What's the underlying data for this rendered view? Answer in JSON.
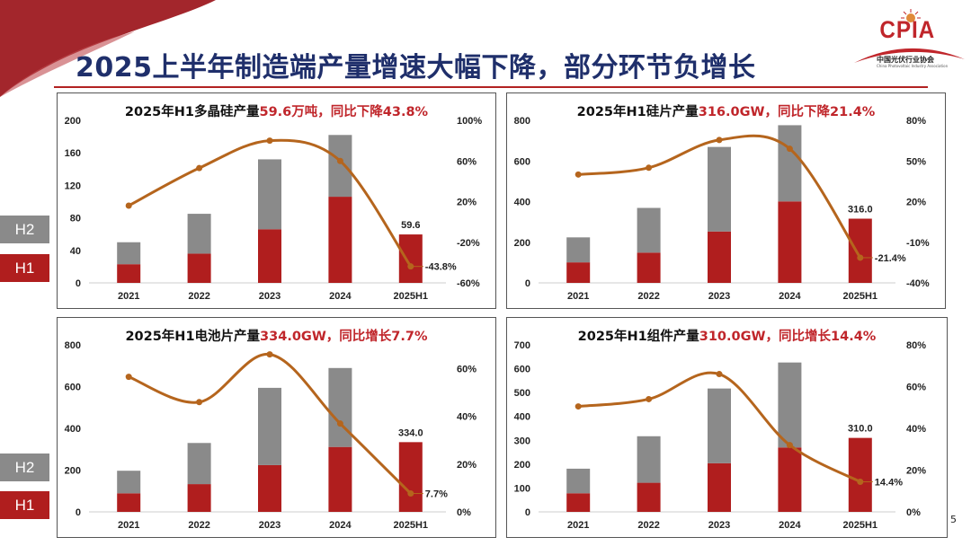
{
  "slide": {
    "title": "2025上半年制造端产量增速大幅下降，部分环节负增长",
    "page_number": "5",
    "logo": {
      "name": "CPIA",
      "cn": "中国光伏行业协会",
      "en": "China Photovoltaic Industry Association"
    },
    "legend": {
      "h2": "H2",
      "h1": "H1"
    },
    "colors": {
      "title": "#1f2f6b",
      "accent": "#c0262b",
      "h1": "#b01e1e",
      "h2": "#8a8a8a",
      "line": "#b5651d"
    }
  },
  "chart_data": [
    {
      "type": "bar",
      "stacked": true,
      "title_prefix": "2025年H1多晶硅产量",
      "title_highlight": "59.6万吨，同比下降43.8%",
      "categories": [
        "2021",
        "2022",
        "2023",
        "2024",
        "2025H1"
      ],
      "series": [
        {
          "name": "H1",
          "values": [
            23,
            36,
            66,
            106,
            59.6
          ]
        },
        {
          "name": "H2",
          "values": [
            27,
            49,
            86,
            76,
            null
          ]
        }
      ],
      "line": {
        "type": "line",
        "axis": "right",
        "unit": "%",
        "values": [
          16,
          53,
          80,
          60,
          -43.8
        ]
      },
      "bar_label": "59.6",
      "line_label": "-43.8%",
      "ylim": [
        0,
        200
      ],
      "yticks": [
        "0",
        "40",
        "80",
        "120",
        "160",
        "200"
      ],
      "y2lim": [
        -60,
        100
      ],
      "y2ticks": [
        "-60%",
        "-20%",
        "20%",
        "60%",
        "100%"
      ]
    },
    {
      "type": "bar",
      "stacked": true,
      "title_prefix": "2025年H1硅片产量",
      "title_highlight": "316.0GW，同比下降21.4%",
      "categories": [
        "2021",
        "2022",
        "2023",
        "2024",
        "2025H1"
      ],
      "series": [
        {
          "name": "H1",
          "values": [
            101,
            149,
            253,
            401,
            316.0
          ]
        },
        {
          "name": "H2",
          "values": [
            123,
            220,
            416,
            375,
            null
          ]
        }
      ],
      "line": {
        "type": "line",
        "axis": "right",
        "unit": "%",
        "values": [
          40,
          45,
          65.5,
          59,
          -21.4
        ]
      },
      "bar_label": "316.0",
      "line_label": "-21.4%",
      "ylim": [
        0,
        800
      ],
      "yticks": [
        "0",
        "200",
        "400",
        "600",
        "800"
      ],
      "y2lim": [
        -40,
        80
      ],
      "y2ticks": [
        "-40%",
        "-10%",
        "20%",
        "50%",
        "80%"
      ]
    },
    {
      "type": "bar",
      "stacked": true,
      "title_prefix": "2025年H1电池片产量",
      "title_highlight": "334.0GW，同比增长7.7%",
      "categories": [
        "2021",
        "2022",
        "2023",
        "2024",
        "2025H1"
      ],
      "series": [
        {
          "name": "H1",
          "values": [
            89,
            133,
            224,
            311,
            334.0
          ]
        },
        {
          "name": "H2",
          "values": [
            108,
            197,
            370,
            378,
            null
          ]
        }
      ],
      "line": {
        "type": "line",
        "axis": "right",
        "unit": "%",
        "values": [
          56.6,
          46,
          66,
          37,
          7.7
        ]
      },
      "bar_label": "334.0",
      "line_label": "7.7%",
      "ylim": [
        0,
        800
      ],
      "yticks": [
        "0",
        "200",
        "400",
        "600",
        "800"
      ],
      "y2lim": [
        0,
        70
      ],
      "y2ticks": [
        "0%",
        "20%",
        "40%",
        "60%"
      ]
    },
    {
      "type": "bar",
      "stacked": true,
      "title_prefix": "2025年H1组件产量",
      "title_highlight": "310.0GW，同比增长14.4%",
      "categories": [
        "2021",
        "2022",
        "2023",
        "2024",
        "2025H1"
      ],
      "series": [
        {
          "name": "H1",
          "values": [
            78,
            122,
            204,
            270,
            310.0
          ]
        },
        {
          "name": "H2",
          "values": [
            103,
            195,
            313,
            356,
            null
          ]
        }
      ],
      "line": {
        "type": "line",
        "axis": "right",
        "unit": "%",
        "values": [
          50.5,
          54,
          66,
          32,
          14.4
        ]
      },
      "bar_label": "310.0",
      "line_label": "14.4%",
      "ylim": [
        0,
        700
      ],
      "yticks": [
        "0",
        "100",
        "200",
        "300",
        "400",
        "500",
        "600",
        "700"
      ],
      "y2lim": [
        0,
        80
      ],
      "y2ticks": [
        "0%",
        "20%",
        "40%",
        "60%",
        "80%"
      ]
    }
  ]
}
